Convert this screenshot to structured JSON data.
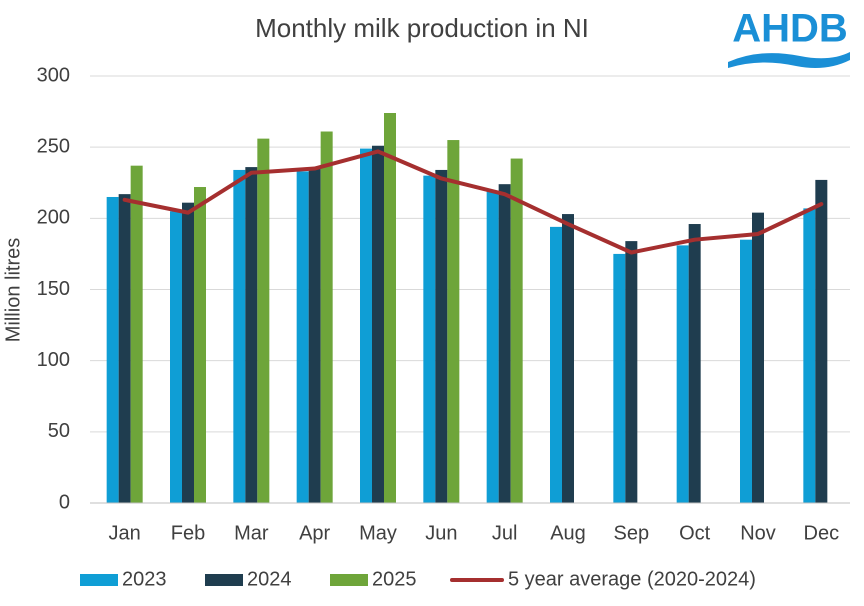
{
  "logo": "AHDB",
  "chart_data": {
    "type": "bar",
    "title": "Monthly milk production in NI",
    "y_label": "Million litres",
    "categories": [
      "Jan",
      "Feb",
      "Mar",
      "Apr",
      "May",
      "Jun",
      "Jul",
      "Aug",
      "Sep",
      "Oct",
      "Nov",
      "Dec"
    ],
    "series": [
      {
        "name": "2023",
        "type": "bar",
        "color": "#0f9ed5",
        "values": [
          215,
          205,
          234,
          233,
          249,
          230,
          219,
          194,
          175,
          181,
          185,
          207
        ]
      },
      {
        "name": "2024",
        "type": "bar",
        "color": "#1f3d4f",
        "values": [
          217,
          211,
          236,
          236,
          251,
          234,
          224,
          203,
          184,
          196,
          204,
          227
        ]
      },
      {
        "name": "2025",
        "type": "bar",
        "color": "#6ea53a",
        "values": [
          237,
          222,
          256,
          261,
          274,
          255,
          242,
          null,
          null,
          null,
          null,
          null
        ]
      },
      {
        "name": "5 year average (2020-2024)",
        "type": "line",
        "color": "#a52f2f",
        "values": [
          213,
          204,
          232,
          235,
          247,
          228,
          217,
          196,
          176,
          185,
          189,
          210
        ]
      }
    ],
    "ylim": [
      0,
      300
    ],
    "yticks": [
      0,
      50,
      100,
      150,
      200,
      250,
      300
    ],
    "grid": true,
    "legend": "bottom"
  }
}
